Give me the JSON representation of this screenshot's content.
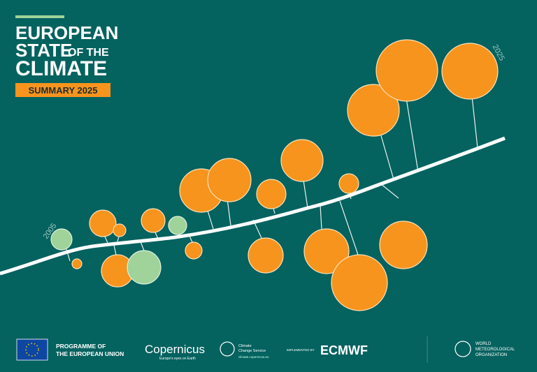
{
  "title": {
    "line1": "EUROPEAN",
    "line2": "STATE",
    "line2_small": "OF THE",
    "line3": "CLIMATE"
  },
  "badge": "SUMMARY 2025",
  "timeline": {
    "start": "2005",
    "end": "2025"
  },
  "footer": {
    "eu": [
      "PROGRAMME OF",
      "THE EUROPEAN UNION"
    ],
    "copernicus": {
      "logo": "Copernicus",
      "tagline": "Europe's eyes on Earth"
    },
    "c3s": {
      "lines": [
        "Climate",
        "Change Service"
      ],
      "url": "climate.copernicus.eu"
    },
    "implemented": "IMPLEMENTED BY",
    "ecmwf": "ECMWF",
    "wmo": [
      "WORLD",
      "METEOROLOGICAL",
      "ORGANIZATION"
    ]
  }
}
